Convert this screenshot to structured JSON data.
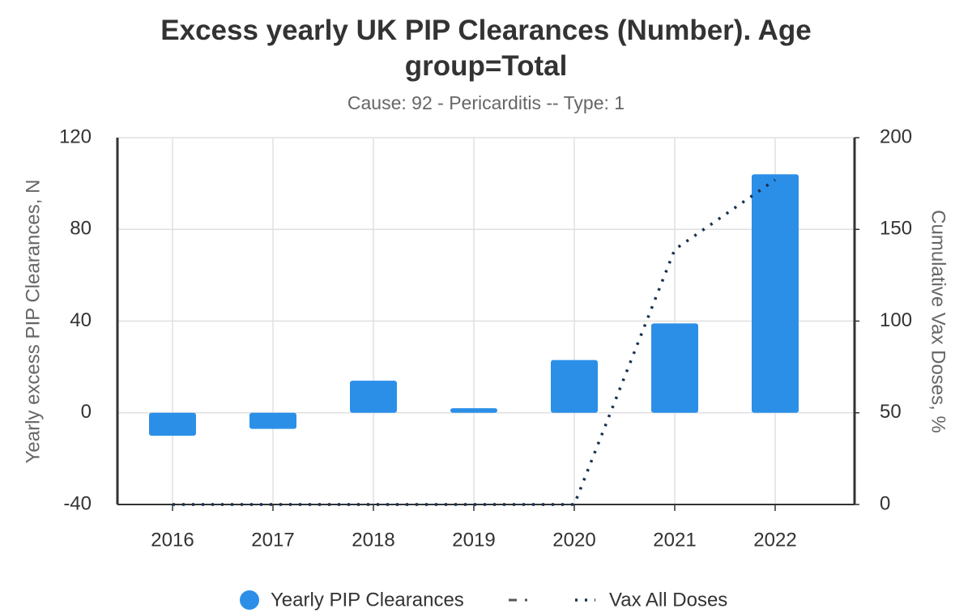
{
  "chart_data": {
    "type": "bar_line",
    "title": "Excess yearly UK PIP Clearances (Number). Age group=Total",
    "subtitle": "Cause: 92 - Pericarditis -- Type: 1",
    "ylabel": "Yearly excess PIP Clearances, N",
    "y2label": "Cumulative Vax Doses, %",
    "categories": [
      "2016",
      "2017",
      "2018",
      "2019",
      "2020",
      "2021",
      "2022"
    ],
    "series": [
      {
        "name": "Yearly PIP Clearances",
        "type": "bar",
        "color": "#2b8fe8",
        "values": [
          -10,
          -7,
          14,
          2,
          23,
          39,
          104
        ]
      },
      {
        "name": "Vax All Doses",
        "type": "line",
        "axis": "y2",
        "color": "#17304f",
        "values": [
          0,
          0,
          0,
          0,
          0,
          139,
          177
        ]
      }
    ],
    "ylim": [
      -40,
      120
    ],
    "yticks": [
      -40,
      0,
      40,
      80,
      120
    ],
    "y2lim": [
      0,
      200
    ],
    "y2ticks": [
      0,
      50,
      100,
      150,
      200
    ],
    "grid": true
  }
}
